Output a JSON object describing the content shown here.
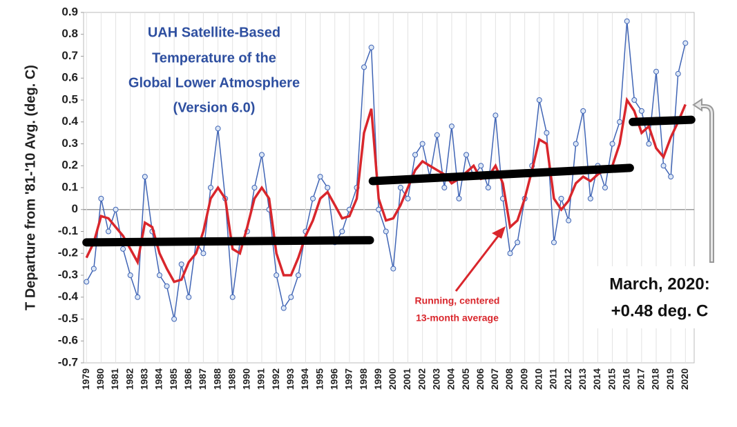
{
  "chart_data": {
    "type": "line",
    "title": [
      "UAH Satellite-Based",
      "Temperature of the",
      "Global Lower Atmosphere",
      "(Version 6.0)"
    ],
    "y_label": "T Departure from '81-'10 Avg. (deg. C)",
    "annotations": {
      "average_note": [
        "Running, centered",
        "13-month average"
      ],
      "latest": [
        "March, 2020:",
        "+0.48 deg. C"
      ]
    },
    "x": [
      1979,
      1979.5,
      1980,
      1980.5,
      1981,
      1981.5,
      1982,
      1982.5,
      1983,
      1983.5,
      1984,
      1984.5,
      1985,
      1985.5,
      1986,
      1986.5,
      1987,
      1987.5,
      1988,
      1988.5,
      1989,
      1989.5,
      1990,
      1990.5,
      1991,
      1991.5,
      1992,
      1992.5,
      1993,
      1993.5,
      1994,
      1994.5,
      1995,
      1995.5,
      1996,
      1996.5,
      1997,
      1997.5,
      1998,
      1998.5,
      1999,
      1999.5,
      2000,
      2000.5,
      2001,
      2001.5,
      2002,
      2002.5,
      2003,
      2003.5,
      2004,
      2004.5,
      2005,
      2005.5,
      2006,
      2006.5,
      2007,
      2007.5,
      2008,
      2008.5,
      2009,
      2009.5,
      2010,
      2010.5,
      2011,
      2011.5,
      2012,
      2012.5,
      2013,
      2013.5,
      2014,
      2014.5,
      2015,
      2015.5,
      2016,
      2016.5,
      2017,
      2017.5,
      2018,
      2018.5,
      2019,
      2019.5,
      2020
    ],
    "series": [
      {
        "color": "#3f64b5",
        "markers": true,
        "values": [
          -0.33,
          -0.27,
          0.05,
          -0.1,
          0.0,
          -0.18,
          -0.3,
          -0.4,
          0.15,
          -0.1,
          -0.3,
          -0.35,
          -0.5,
          -0.25,
          -0.4,
          -0.15,
          -0.2,
          0.1,
          0.37,
          0.05,
          -0.4,
          -0.15,
          -0.1,
          0.1,
          0.25,
          0.0,
          -0.3,
          -0.45,
          -0.4,
          -0.3,
          -0.1,
          0.05,
          0.15,
          0.1,
          -0.15,
          -0.1,
          0.0,
          0.1,
          0.65,
          0.74,
          0.0,
          -0.1,
          -0.27,
          0.1,
          0.05,
          0.25,
          0.3,
          0.15,
          0.34,
          0.1,
          0.38,
          0.05,
          0.25,
          0.15,
          0.2,
          0.1,
          0.43,
          0.05,
          -0.2,
          -0.15,
          0.05,
          0.2,
          0.5,
          0.35,
          -0.15,
          0.05,
          -0.05,
          0.3,
          0.45,
          0.05,
          0.2,
          0.1,
          0.3,
          0.4,
          0.86,
          0.5,
          0.45,
          0.3,
          0.63,
          0.2,
          0.15,
          0.62,
          0.76
        ]
      },
      {
        "color": "#d9262c",
        "markers": false,
        "values": [
          -0.22,
          -0.15,
          -0.03,
          -0.04,
          -0.08,
          -0.12,
          -0.18,
          -0.24,
          -0.06,
          -0.08,
          -0.2,
          -0.27,
          -0.33,
          -0.32,
          -0.24,
          -0.2,
          -0.1,
          0.05,
          0.1,
          0.05,
          -0.18,
          -0.2,
          -0.08,
          0.05,
          0.1,
          0.05,
          -0.2,
          -0.3,
          -0.3,
          -0.22,
          -0.12,
          -0.05,
          0.05,
          0.08,
          0.02,
          -0.04,
          -0.03,
          0.05,
          0.35,
          0.46,
          0.05,
          -0.05,
          -0.04,
          0.02,
          0.1,
          0.18,
          0.22,
          0.2,
          0.18,
          0.16,
          0.12,
          0.14,
          0.17,
          0.2,
          0.14,
          0.15,
          0.2,
          0.12,
          -0.08,
          -0.05,
          0.05,
          0.18,
          0.32,
          0.3,
          0.05,
          0.0,
          0.04,
          0.12,
          0.15,
          0.13,
          0.16,
          0.18,
          0.2,
          0.3,
          0.5,
          0.45,
          0.35,
          0.38,
          0.28,
          0.24,
          0.33,
          0.4,
          0.48
        ]
      }
    ],
    "steps": {
      "color": "#000000",
      "x": [
        1979,
        1998.4,
        1998.5,
        1998.6,
        2016.2,
        2016.3,
        2016.4,
        2020.4
      ],
      "values": [
        -0.15,
        -0.14,
        null,
        0.13,
        0.19,
        null,
        0.4,
        0.41
      ]
    },
    "xlim": [
      1978.8,
      2020.6
    ],
    "xticks": [
      1979,
      1980,
      1981,
      1982,
      1983,
      1984,
      1985,
      1986,
      1987,
      1988,
      1989,
      1990,
      1991,
      1992,
      1993,
      1994,
      1995,
      1996,
      1997,
      1998,
      1999,
      2000,
      2001,
      2002,
      2003,
      2004,
      2005,
      2006,
      2007,
      2008,
      2009,
      2010,
      2011,
      2012,
      2013,
      2014,
      2015,
      2016,
      2017,
      2018,
      2019,
      2020
    ],
    "ylim": [
      -0.7,
      0.9
    ],
    "yticks": [
      0.9,
      0.8,
      0.7,
      0.6,
      0.5,
      0.4,
      0.3,
      0.2,
      0.1,
      0,
      -0.1,
      -0.2,
      -0.3,
      -0.4,
      -0.5,
      -0.6,
      -0.7
    ],
    "xgrid": true
  }
}
